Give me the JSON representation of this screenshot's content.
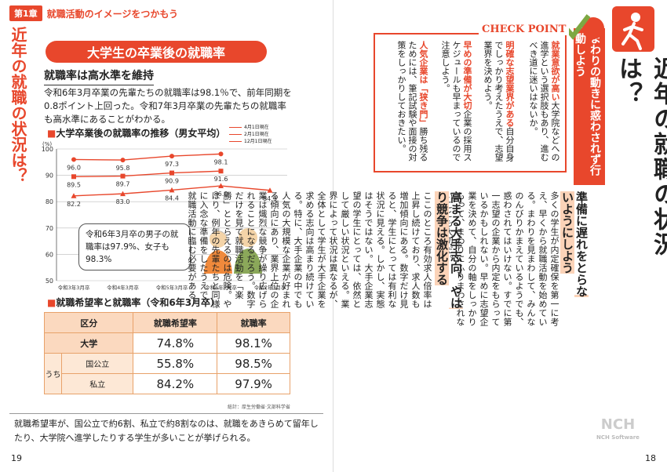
{
  "left": {
    "chapter_no": "第1章",
    "chapter_title": "就職活動のイメージをつかもう",
    "side_title": "近年の就職の状況は？",
    "section_heading": "大学生の卒業後の就職率",
    "subheading": "就職率は高水準を維持",
    "paragraph": "令和6年3月卒業の先輩たちの就職率は98.1％で、前年同期を0.8ポイント上回った。令和7年3月卒業の先輩たちの就職率も高水準にあることがわかる。",
    "chart_title": "大学卒業後の就職率の推移（男女平均）",
    "bubble": "令和6年3月卒の男子の就職率は97.9%、女子も98.3%",
    "table_title": "就職希望率と就職率（令和6年3月卒）",
    "table": {
      "headers": [
        "区分",
        "就職希望率",
        "就職率"
      ],
      "rows": [
        {
          "group": "",
          "label": "大学",
          "hope": "74.8%",
          "rate": "98.1%"
        },
        {
          "group": "うち",
          "label": "国公立",
          "hope": "55.8%",
          "rate": "98.5%"
        },
        {
          "group": "",
          "label": "私立",
          "hope": "84.2%",
          "rate": "97.9%"
        }
      ]
    },
    "source": "総計：厚生労働省·文部科学省",
    "bottom_text": "就職希望率が、国公立で約6割、私立で約8割なのは、就職をあきらめて留年したり、大学院へ進学したりする学生が多いことが挙げられる。",
    "page_no": "19"
  },
  "chart_data": {
    "type": "line",
    "title": "大学卒業後の就職率の推移（男女平均）",
    "ylabel": "(%)",
    "ylim": [
      50,
      100
    ],
    "yticks": [
      50,
      60,
      70,
      80,
      90,
      100
    ],
    "categories": [
      "令和3年3月卒",
      "令和4年3月卒",
      "令和5年3月卒",
      "令和6年3月卒",
      "令和7年3月卒"
    ],
    "series": [
      {
        "name": "4月1日現在",
        "marker": "circle",
        "values": [
          96.0,
          95.8,
          97.3,
          98.1,
          null
        ]
      },
      {
        "name": "2月1日現在",
        "marker": "square",
        "values": [
          89.5,
          89.7,
          90.9,
          91.6,
          null
        ]
      },
      {
        "name": "12月1日現在",
        "marker": "triangle",
        "values": [
          82.2,
          83.0,
          84.4,
          86.0,
          84.3
        ]
      }
    ],
    "color": "#e8472c"
  },
  "right": {
    "main_title": "近年の就職の状況は？",
    "check_point": "CHECK POINT",
    "banner": "まわりの動きに惑わされず行動しよう",
    "cp_items": [
      {
        "head": "就業意欲が高い",
        "body": "大学院などへの進学という選択肢もあり、進むべき道に迷いはないか。"
      },
      {
        "head": "明確な志望業界がある",
        "body": "自分自身でしっかり考えたうえで、志望業界を決めよう。"
      },
      {
        "head": "早めの準備が大切",
        "body": "企業の採用スケジュールも早まっているので注意しよう。"
      },
      {
        "head": "人気企業は「狭き門」",
        "body": "勝ち残るためには、筆記試験や面接の対策をしっかりしておきたい。"
      }
    ],
    "h1": "準備に遅れをとらないようにしよう",
    "body1": "多くの学生が内定確保を第一に考え、早くから就職活動を始めている。まわりを見まわして、みんなのんびりかまえているようでも、惑わされてはいけない。すでに第一志望の企業から内定をもらっているかもしれない。早めに志望企業を決めて、自分の軸をしっかりもって、まわりにふりまわされないことも大切だ。",
    "h2": "高まる大手志向、やはり競争は激化する",
    "body2": "ここのところ有効求人倍率は上昇し続けており、求人数も増加傾向にある。数字だけ見ると、学生にとっては有利な状況に見える。しかし、実態はそうではない。大手企業志望の学生にとっては、依然として厳しい状況といえる。業界によって状況は異なるが、全体として学生が大手企業を求める志向は高まり続けている。特に、大手企業の中でも人気の大規模な企業が好まれる傾向にあり、業界上位の企業は熾烈な競争が繰り広げられることになるだろう。数字だけを見て就職活動を「楽勝」ととらえるのは危険。やはり、例年の先輩たちと同様に入念な準備をしたうえで、就職活動に臨む必要がある。",
    "page_no": "18",
    "watermark": "NCH",
    "watermark_sub": "NCH Software"
  }
}
